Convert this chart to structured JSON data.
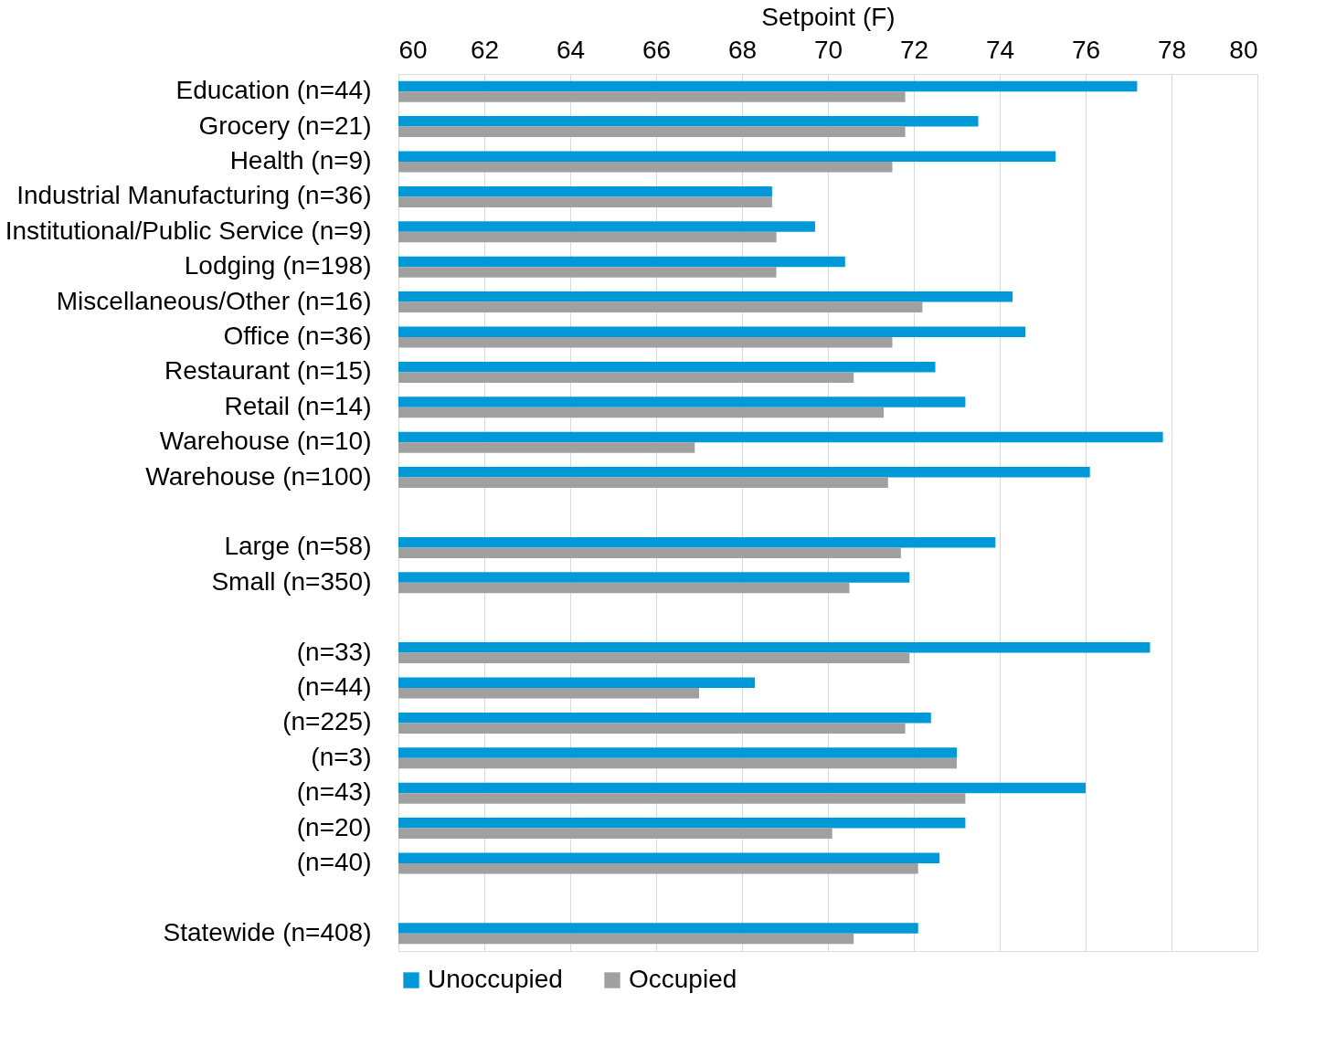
{
  "chart_data": {
    "type": "bar",
    "orientation": "horizontal",
    "xlabel": "Setpoint (F)",
    "categories": [
      "Education (n=44)",
      "Grocery (n=21)",
      "Health (n=9)",
      "Industrial Manufacturing (n=36)",
      "Institutional/Public Service (n=9)",
      "Lodging (n=198)",
      "Miscellaneous/Other (n=16)",
      "Office (n=36)",
      "Restaurant (n=15)",
      "Retail (n=14)",
      "Warehouse (n=10)",
      "Warehouse (n=100)",
      null,
      "Large (n=58)",
      "Small (n=350)",
      null,
      "(n=33)",
      "(n=44)",
      "(n=225)",
      "(n=3)",
      "(n=43)",
      "(n=20)",
      "(n=40)",
      null,
      "Statewide (n=408)"
    ],
    "series": [
      {
        "name": "Unoccupied",
        "color": "#0099d8",
        "values": [
          77.2,
          73.5,
          75.3,
          68.7,
          69.7,
          70.4,
          74.3,
          74.6,
          72.5,
          73.2,
          77.8,
          76.1,
          null,
          73.9,
          71.9,
          null,
          77.5,
          68.3,
          72.4,
          73.0,
          76.0,
          73.2,
          72.6,
          null,
          72.1
        ]
      },
      {
        "name": "Occupied",
        "color": "#a0a0a0",
        "values": [
          71.8,
          71.8,
          71.5,
          68.7,
          68.8,
          68.8,
          72.2,
          71.5,
          70.6,
          71.3,
          66.9,
          71.4,
          null,
          71.7,
          70.5,
          null,
          71.9,
          67.0,
          71.8,
          73.0,
          73.2,
          70.1,
          72.1,
          null,
          70.6
        ]
      }
    ],
    "xlim": [
      60,
      80
    ],
    "xticks": [
      60,
      62,
      64,
      66,
      68,
      70,
      72,
      74,
      76,
      78,
      80
    ],
    "grid": "x",
    "legend": "bottom"
  }
}
